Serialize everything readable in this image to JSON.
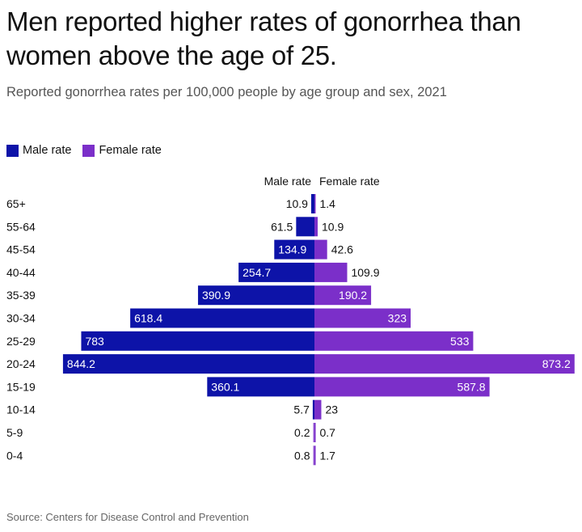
{
  "title": "Men reported higher rates of gonorrhea than women above the age of 25.",
  "subtitle": "Reported gonorrhea rates per 100,000 people by age group and sex, 2021",
  "source": "Source: Centers for Disease Control and Prevention",
  "colors": {
    "male": "#0d13a8",
    "female": "#7b2fc9"
  },
  "chart_data": {
    "type": "bar",
    "orientation": "horizontal-diverging",
    "title": "Men reported higher rates of gonorrhea than women above the age of 25.",
    "subtitle": "Reported gonorrhea rates per 100,000 people by age group and sex, 2021",
    "categories": [
      "65+",
      "55-64",
      "45-54",
      "40-44",
      "35-39",
      "30-34",
      "25-29",
      "20-24",
      "15-19",
      "10-14",
      "5-9",
      "0-4"
    ],
    "series": [
      {
        "name": "Male rate",
        "values": [
          10.9,
          61.5,
          134.9,
          254.7,
          390.9,
          618.4,
          783,
          844.2,
          360.1,
          5.7,
          0.2,
          0.8
        ]
      },
      {
        "name": "Female rate",
        "values": [
          1.4,
          10.9,
          42.6,
          109.9,
          190.2,
          323,
          533,
          873.2,
          587.8,
          23,
          0.7,
          1.7
        ]
      }
    ],
    "labels": {
      "male": [
        "10.9",
        "61.5",
        "134.9",
        "254.7",
        "390.9",
        "618.4",
        "783",
        "844.2",
        "360.1",
        "5.7",
        "0.2",
        "0.8"
      ],
      "female": [
        "1.4",
        "10.9",
        "42.6",
        "109.9",
        "190.2",
        "323",
        "533",
        "873.2",
        "587.8",
        "23",
        "0.7",
        "1.7"
      ]
    },
    "column_headers": {
      "male": "Male rate",
      "female": "Female rate"
    },
    "legend": {
      "position": "top-left",
      "entries": [
        "Male rate",
        "Female rate"
      ]
    },
    "xlabel": "",
    "ylabel": "",
    "xlim": [
      -900,
      900
    ],
    "grid": false
  }
}
